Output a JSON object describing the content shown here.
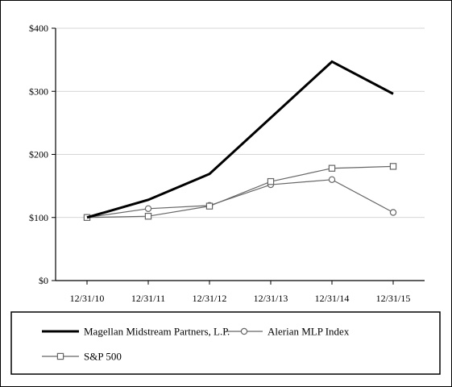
{
  "chart_data": {
    "type": "line",
    "categories": [
      "12/31/10",
      "12/31/11",
      "12/31/12",
      "12/31/13",
      "12/31/14",
      "12/31/15"
    ],
    "y_ticks": [
      "$0",
      "$100",
      "$200",
      "$300",
      "$400"
    ],
    "ylim": [
      0,
      400
    ],
    "grid": true,
    "legend_position": "bottom",
    "series": [
      {
        "name": "Magellan Midstream Partners, L.P.",
        "values": [
          100,
          128,
          169,
          258,
          347,
          296
        ],
        "color": "#000000",
        "marker": "none"
      },
      {
        "name": "Alerian MLP Index",
        "values": [
          100,
          114,
          119,
          152,
          160,
          108
        ],
        "color": "#666666",
        "marker": "circle"
      },
      {
        "name": "S&P 500",
        "values": [
          100,
          102,
          118,
          157,
          178,
          181
        ],
        "color": "#666666",
        "marker": "square"
      }
    ]
  }
}
